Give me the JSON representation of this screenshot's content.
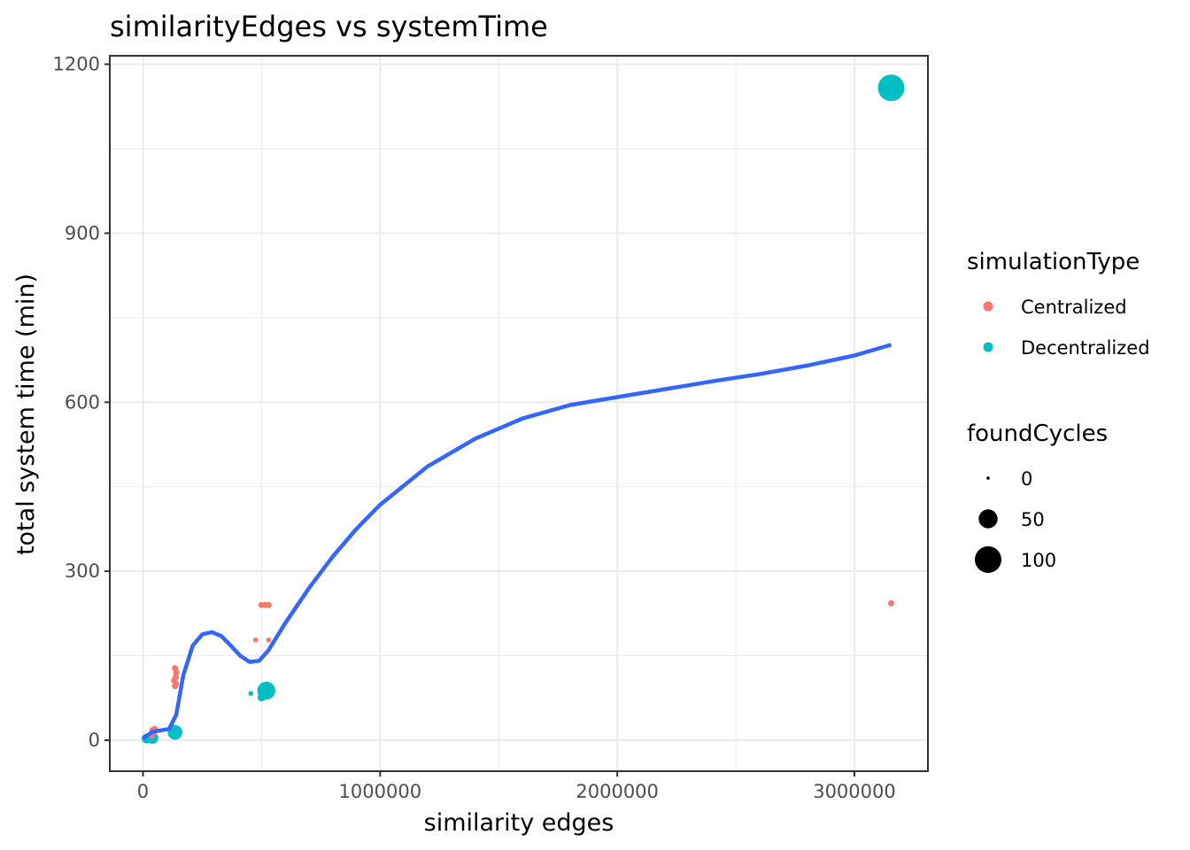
{
  "chart_data": {
    "type": "scatter",
    "title": "similarityEdges vs systemTime",
    "xlabel": "similarity edges",
    "ylabel": "total system time (min)",
    "xlim": [
      -140000,
      3310000
    ],
    "ylim": [
      -55,
      1215
    ],
    "x_ticks": [
      0,
      1000000,
      2000000,
      3000000
    ],
    "x_tick_labels": [
      "0",
      "1000000",
      "2000000",
      "3000000"
    ],
    "y_ticks": [
      0,
      300,
      600,
      900,
      1200
    ],
    "y_tick_labels": [
      "0",
      "300",
      "600",
      "900",
      "1200"
    ],
    "grid": true,
    "legend_placement": "right",
    "color_legend": {
      "title": "simulationType",
      "entries": [
        {
          "label": "Centralized",
          "color": "#f8766d"
        },
        {
          "label": "Decentralized",
          "color": "#00bfc4"
        }
      ]
    },
    "size_legend": {
      "title": "foundCycles",
      "entries": [
        {
          "label": "0",
          "value": 0
        },
        {
          "label": "50",
          "value": 50
        },
        {
          "label": "100",
          "value": 100
        }
      ]
    },
    "series": [
      {
        "name": "Centralized",
        "color": "#f8766d",
        "points": [
          {
            "x": 40000,
            "y": 18,
            "size": 4
          },
          {
            "x": 45000,
            "y": 14,
            "size": 4
          },
          {
            "x": 38000,
            "y": 8,
            "size": 4
          },
          {
            "x": 50000,
            "y": 20,
            "size": 4
          },
          {
            "x": 135000,
            "y": 128,
            "size": 4
          },
          {
            "x": 140000,
            "y": 120,
            "size": 4
          },
          {
            "x": 138000,
            "y": 112,
            "size": 4
          },
          {
            "x": 132000,
            "y": 106,
            "size": 4
          },
          {
            "x": 140000,
            "y": 100,
            "size": 4
          },
          {
            "x": 135000,
            "y": 96,
            "size": 4
          },
          {
            "x": 475000,
            "y": 178,
            "size": 2
          },
          {
            "x": 530000,
            "y": 178,
            "size": 2
          },
          {
            "x": 500000,
            "y": 240,
            "size": 4
          },
          {
            "x": 515000,
            "y": 240,
            "size": 4
          },
          {
            "x": 530000,
            "y": 240,
            "size": 4
          },
          {
            "x": 3155000,
            "y": 243,
            "size": 4
          }
        ]
      },
      {
        "name": "Decentralized",
        "color": "#00bfc4",
        "points": [
          {
            "x": 15000,
            "y": 3,
            "size": 12
          },
          {
            "x": 40000,
            "y": 4,
            "size": 18
          },
          {
            "x": 135000,
            "y": 14,
            "size": 30
          },
          {
            "x": 455000,
            "y": 83,
            "size": 2
          },
          {
            "x": 500000,
            "y": 76,
            "size": 8
          },
          {
            "x": 520000,
            "y": 88,
            "size": 45
          },
          {
            "x": 3155000,
            "y": 1158,
            "size": 100
          }
        ]
      }
    ],
    "smooth_line": {
      "color": "#3366ff",
      "x": [
        0,
        40000,
        80000,
        110000,
        140000,
        170000,
        210000,
        250000,
        290000,
        330000,
        370000,
        410000,
        450000,
        490000,
        530000,
        600000,
        700000,
        800000,
        900000,
        1000000,
        1200000,
        1400000,
        1600000,
        1800000,
        2000000,
        2200000,
        2400000,
        2600000,
        2800000,
        3000000,
        3155000
      ],
      "y": [
        3,
        15,
        18,
        20,
        45,
        115,
        168,
        188,
        192,
        185,
        168,
        150,
        139,
        141,
        160,
        208,
        270,
        326,
        375,
        418,
        486,
        535,
        571,
        595,
        609,
        623,
        637,
        650,
        665,
        683,
        702
      ]
    }
  }
}
